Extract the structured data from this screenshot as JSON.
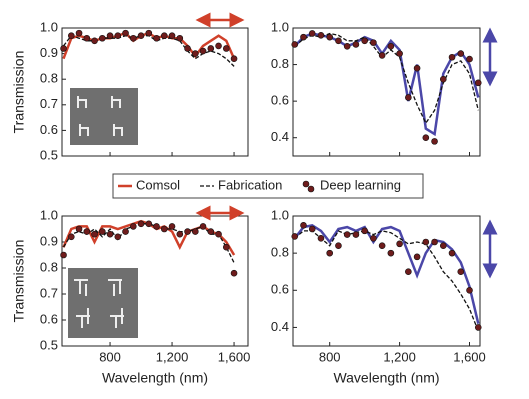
{
  "chart_data": [
    {
      "type": "line",
      "ylabel": "Transmission",
      "x": [
        500,
        550,
        600,
        650,
        700,
        750,
        800,
        850,
        900,
        950,
        1000,
        1050,
        1100,
        1150,
        1200,
        1250,
        1300,
        1350,
        1400,
        1450,
        1500,
        1550,
        1600
      ],
      "xlim": [
        490,
        1690
      ],
      "ylim": [
        0.5,
        1.0
      ],
      "xticks": [
        800,
        1200,
        1600
      ],
      "yticks": [
        0.5,
        0.6,
        0.7,
        0.8,
        0.9,
        {
          "value": 1.0,
          "label": "1.0"
        }
      ],
      "series": [
        {
          "name": "Comsol",
          "color": "#d0402a",
          "style": "solid",
          "values": [
            0.88,
            0.96,
            0.97,
            0.96,
            0.95,
            0.96,
            0.96,
            0.97,
            0.98,
            0.95,
            0.97,
            0.98,
            0.96,
            0.97,
            0.96,
            0.96,
            0.93,
            0.89,
            0.93,
            0.95,
            0.97,
            0.95,
            0.88
          ]
        },
        {
          "name": "Fabrication",
          "color": "#111111",
          "style": "dashed",
          "values": [
            0.93,
            0.97,
            0.96,
            0.95,
            0.95,
            0.96,
            0.96,
            0.96,
            0.97,
            0.96,
            0.97,
            0.97,
            0.95,
            0.96,
            0.96,
            0.95,
            0.91,
            0.88,
            0.9,
            0.91,
            0.9,
            0.88,
            0.85
          ]
        },
        {
          "name": "Deep learning",
          "color": "#6e1c1c",
          "style": "dots",
          "values": [
            0.92,
            0.97,
            0.98,
            0.96,
            0.95,
            0.96,
            0.97,
            0.97,
            0.98,
            0.96,
            0.97,
            0.98,
            0.96,
            0.97,
            0.97,
            0.96,
            0.92,
            0.9,
            0.91,
            0.92,
            0.93,
            0.92,
            0.88
          ]
        }
      ]
    },
    {
      "type": "line",
      "x": [
        600,
        650,
        700,
        750,
        800,
        850,
        900,
        950,
        1000,
        1050,
        1100,
        1150,
        1200,
        1250,
        1300,
        1350,
        1400,
        1450,
        1500,
        1550,
        1600,
        1650
      ],
      "xlim": [
        590,
        1660
      ],
      "ylim": [
        0.3,
        1.0
      ],
      "xticks": [
        800,
        1200,
        1600
      ],
      "yticks": [
        0.4,
        0.6,
        0.8,
        {
          "value": 1.0,
          "label": "1.0"
        }
      ],
      "series": [
        {
          "name": "Comsol",
          "color": "#4b47a8",
          "style": "solid",
          "values": [
            0.9,
            0.95,
            0.97,
            0.96,
            0.95,
            0.93,
            0.9,
            0.92,
            0.95,
            0.93,
            0.86,
            0.93,
            0.88,
            0.6,
            0.8,
            0.45,
            0.42,
            0.75,
            0.84,
            0.87,
            0.8,
            0.62
          ]
        },
        {
          "name": "Fabrication",
          "color": "#111111",
          "style": "dashed",
          "values": [
            0.9,
            0.94,
            0.96,
            0.95,
            0.97,
            0.96,
            0.93,
            0.93,
            0.95,
            0.9,
            0.84,
            0.88,
            0.84,
            0.7,
            0.58,
            0.48,
            0.55,
            0.7,
            0.8,
            0.82,
            0.75,
            0.55
          ]
        },
        {
          "name": "Deep learning",
          "color": "#6e1c1c",
          "style": "dots",
          "values": [
            0.91,
            0.95,
            0.97,
            0.96,
            0.95,
            0.93,
            0.9,
            0.91,
            0.93,
            0.92,
            0.85,
            0.9,
            0.86,
            0.62,
            0.78,
            0.4,
            0.38,
            0.72,
            0.84,
            0.86,
            0.83,
            0.7
          ]
        }
      ]
    },
    {
      "type": "line",
      "ylabel": "Transmission",
      "xlabel": "Wavelength (nm)",
      "x": [
        500,
        550,
        600,
        650,
        700,
        750,
        800,
        850,
        900,
        950,
        1000,
        1050,
        1100,
        1150,
        1200,
        1250,
        1300,
        1350,
        1400,
        1450,
        1500,
        1550,
        1600
      ],
      "xlim": [
        490,
        1690
      ],
      "ylim": [
        0.5,
        1.0
      ],
      "xticks": [
        800,
        {
          "value": 1200,
          "label": "1,200"
        },
        {
          "value": 1600,
          "label": "1,600"
        }
      ],
      "yticks": [
        0.5,
        0.6,
        0.7,
        0.8,
        0.9,
        {
          "value": 1.0,
          "label": "1.0"
        }
      ],
      "series": [
        {
          "name": "Comsol",
          "color": "#d0402a",
          "style": "solid",
          "values": [
            0.88,
            0.95,
            0.96,
            0.96,
            0.9,
            0.96,
            0.96,
            0.95,
            0.96,
            0.97,
            0.98,
            0.97,
            0.95,
            0.96,
            0.94,
            0.88,
            0.94,
            0.95,
            0.96,
            0.94,
            0.93,
            0.9,
            0.85
          ]
        },
        {
          "name": "Fabrication",
          "color": "#111111",
          "style": "dashed",
          "values": [
            0.88,
            0.93,
            0.94,
            0.93,
            0.95,
            0.92,
            0.95,
            0.91,
            0.95,
            0.96,
            0.97,
            0.97,
            0.96,
            0.95,
            0.95,
            0.94,
            0.94,
            0.95,
            0.96,
            0.93,
            0.93,
            0.88,
            0.82
          ]
        },
        {
          "name": "Deep learning",
          "color": "#6e1c1c",
          "style": "dots",
          "values": [
            0.85,
            0.92,
            0.95,
            0.94,
            0.93,
            0.94,
            0.93,
            0.92,
            0.94,
            0.96,
            0.97,
            0.97,
            0.96,
            0.95,
            0.96,
            0.93,
            0.94,
            0.94,
            0.96,
            0.94,
            0.93,
            0.88,
            0.78
          ]
        }
      ]
    },
    {
      "type": "line",
      "xlabel": "Wavelength (nm)",
      "x": [
        600,
        650,
        700,
        750,
        800,
        850,
        900,
        950,
        1000,
        1050,
        1100,
        1150,
        1200,
        1250,
        1300,
        1350,
        1400,
        1450,
        1500,
        1550,
        1600,
        1650
      ],
      "xlim": [
        590,
        1660
      ],
      "ylim": [
        0.3,
        1.0
      ],
      "xticks": [
        800,
        {
          "value": 1200,
          "label": "1,200"
        },
        {
          "value": 1600,
          "label": "1,600"
        }
      ],
      "yticks": [
        0.4,
        0.6,
        0.8,
        {
          "value": 1.0,
          "label": "1.0"
        }
      ],
      "series": [
        {
          "name": "Comsol",
          "color": "#4b47a8",
          "style": "solid",
          "values": [
            0.88,
            0.94,
            0.95,
            0.92,
            0.86,
            0.93,
            0.94,
            0.92,
            0.94,
            0.86,
            0.93,
            0.94,
            0.92,
            0.8,
            0.68,
            0.8,
            0.87,
            0.86,
            0.82,
            0.75,
            0.62,
            0.42
          ]
        },
        {
          "name": "Fabrication",
          "color": "#111111",
          "style": "dashed",
          "values": [
            0.88,
            0.92,
            0.92,
            0.88,
            0.84,
            0.92,
            0.9,
            0.91,
            0.92,
            0.9,
            0.92,
            0.91,
            0.88,
            0.85,
            0.86,
            0.85,
            0.78,
            0.7,
            0.65,
            0.58,
            0.5,
            0.38
          ]
        },
        {
          "name": "Deep learning",
          "color": "#6e1c1c",
          "style": "dots",
          "values": [
            0.89,
            0.95,
            0.93,
            0.88,
            0.8,
            0.84,
            0.9,
            0.9,
            0.92,
            0.88,
            0.84,
            0.8,
            0.85,
            0.7,
            0.78,
            0.86,
            0.86,
            0.84,
            0.8,
            0.7,
            0.6,
            0.4
          ]
        }
      ]
    }
  ]
}
